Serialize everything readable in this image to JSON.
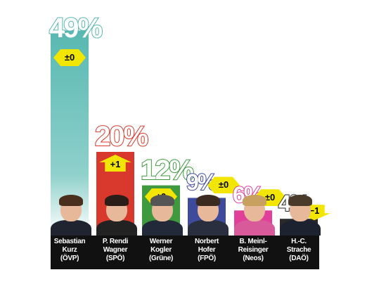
{
  "chart_data": {
    "type": "bar",
    "ylim": [
      0,
      50
    ],
    "categories": [
      "Sebastian Kurz (ÖVP)",
      "P. Rendi Wagner (SPÖ)",
      "Werner Kogler (Grüne)",
      "Norbert Hofer (FPÖ)",
      "B. Meinl-Reisinger (Neos)",
      "H.-C. Strache (DAÖ)"
    ],
    "values": [
      49,
      20,
      12,
      9,
      6,
      4
    ],
    "value_labels": [
      "49%",
      "20%",
      "12%",
      "9%",
      "6%",
      "4%"
    ],
    "changes": [
      "±0",
      "+1",
      "±0",
      "±0",
      "±0",
      "−1"
    ],
    "change_direction": [
      "neutral",
      "up",
      "neutral",
      "neutral",
      "neutral",
      "down"
    ],
    "name_lines": [
      [
        "Sebastian",
        "Kurz",
        "(ÖVP)"
      ],
      [
        "P. Rendi",
        "Wagner",
        "(SPÖ)"
      ],
      [
        "Werner",
        "Kogler",
        "(Grüne)"
      ],
      [
        "Norbert",
        "Hofer",
        "(FPÖ)"
      ],
      [
        "B. Meinl-",
        "Reisinger",
        "(Neos)"
      ],
      [
        "H.-C.",
        "Strache",
        "(DAÖ)"
      ]
    ],
    "colors": [
      "#58b8b1",
      "#d9392c",
      "#3f9a3f",
      "#3e4a9c",
      "#e0409a",
      "#2a2a2a"
    ],
    "grid": false,
    "legend": "none"
  },
  "colors": {
    "change_badge": "#f2e600",
    "name_bar": "#111111",
    "background": "#ffffff"
  },
  "portraits": [
    {
      "hair": "#4a2f1f",
      "suit": "#1f2430"
    },
    {
      "hair": "#2b1d18",
      "suit": "#222222"
    },
    {
      "hair": "#555555",
      "suit": "#222a3a"
    },
    {
      "hair": "#3a2a20",
      "suit": "#2a2f3f"
    },
    {
      "hair": "#c8a060",
      "suit": "#d85a9a"
    },
    {
      "hair": "#4a3a2a",
      "suit": "#1d2230"
    }
  ]
}
